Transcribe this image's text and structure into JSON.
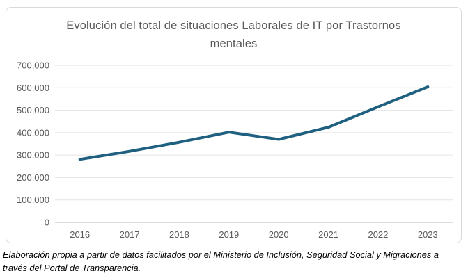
{
  "chart_data": {
    "type": "line",
    "title": "Evolución del total de situaciones Laborales de IT por Trastornos mentales",
    "categories": [
      "2016",
      "2017",
      "2018",
      "2019",
      "2020",
      "2021",
      "2022",
      "2023"
    ],
    "values": [
      281000,
      317000,
      357000,
      402000,
      370000,
      424000,
      515000,
      604000
    ],
    "series_name": "Total de situaciones laborales de IT por trastornos mentales",
    "xlabel": "",
    "ylabel": "",
    "ylim": [
      0,
      700000
    ],
    "ytick_step": 100000,
    "ytick_labels": [
      "0",
      "100,000",
      "200,000",
      "300,000",
      "400,000",
      "500,000",
      "600,000",
      "700,000"
    ],
    "grid": true,
    "legend": false
  },
  "source_note": "Elaboración propia a partir de datos facilitados por el Ministerio de Inclusión, Seguridad Social y Migraciones a través del Portal de Transparencia.",
  "colors": {
    "line": "#1f6080",
    "title_text": "#595959",
    "axis_text": "#595959",
    "gridline": "#e4e4e4",
    "axis_line": "#b8b8b8",
    "box_border": "#d9d9d9",
    "background": "#ffffff"
  }
}
